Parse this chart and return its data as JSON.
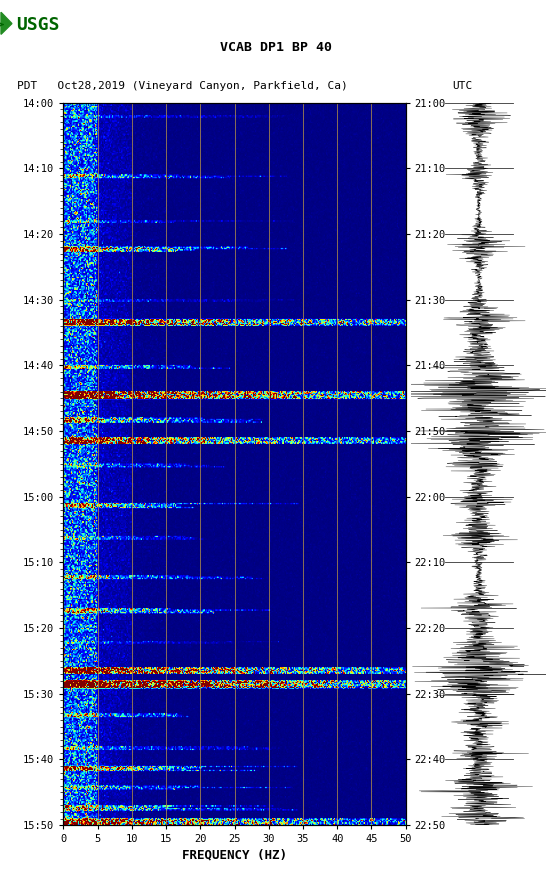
{
  "title_line1": "VCAB DP1 BP 40",
  "title_line2_left": "PDT   Oct28,2019 (Vineyard Canyon, Parkfield, Ca)",
  "title_line2_right": "UTC",
  "xlabel": "FREQUENCY (HZ)",
  "freq_min": 0,
  "freq_max": 50,
  "left_ticks": [
    "14:00",
    "14:10",
    "14:20",
    "14:30",
    "14:40",
    "14:50",
    "15:00",
    "15:10",
    "15:20",
    "15:30",
    "15:40",
    "15:50"
  ],
  "right_ticks": [
    "21:00",
    "21:10",
    "21:20",
    "21:30",
    "21:40",
    "21:50",
    "22:00",
    "22:10",
    "22:20",
    "22:30",
    "22:40",
    "22:50"
  ],
  "freq_ticks": [
    0,
    5,
    10,
    15,
    20,
    25,
    30,
    35,
    40,
    45,
    50
  ],
  "vertical_lines_freq": [
    5,
    10,
    15,
    20,
    25,
    30,
    35,
    40,
    45
  ],
  "colormap": "jet",
  "n_time": 550,
  "n_freq": 300,
  "seed": 42,
  "figwidth": 5.52,
  "figheight": 8.92,
  "dpi": 100
}
